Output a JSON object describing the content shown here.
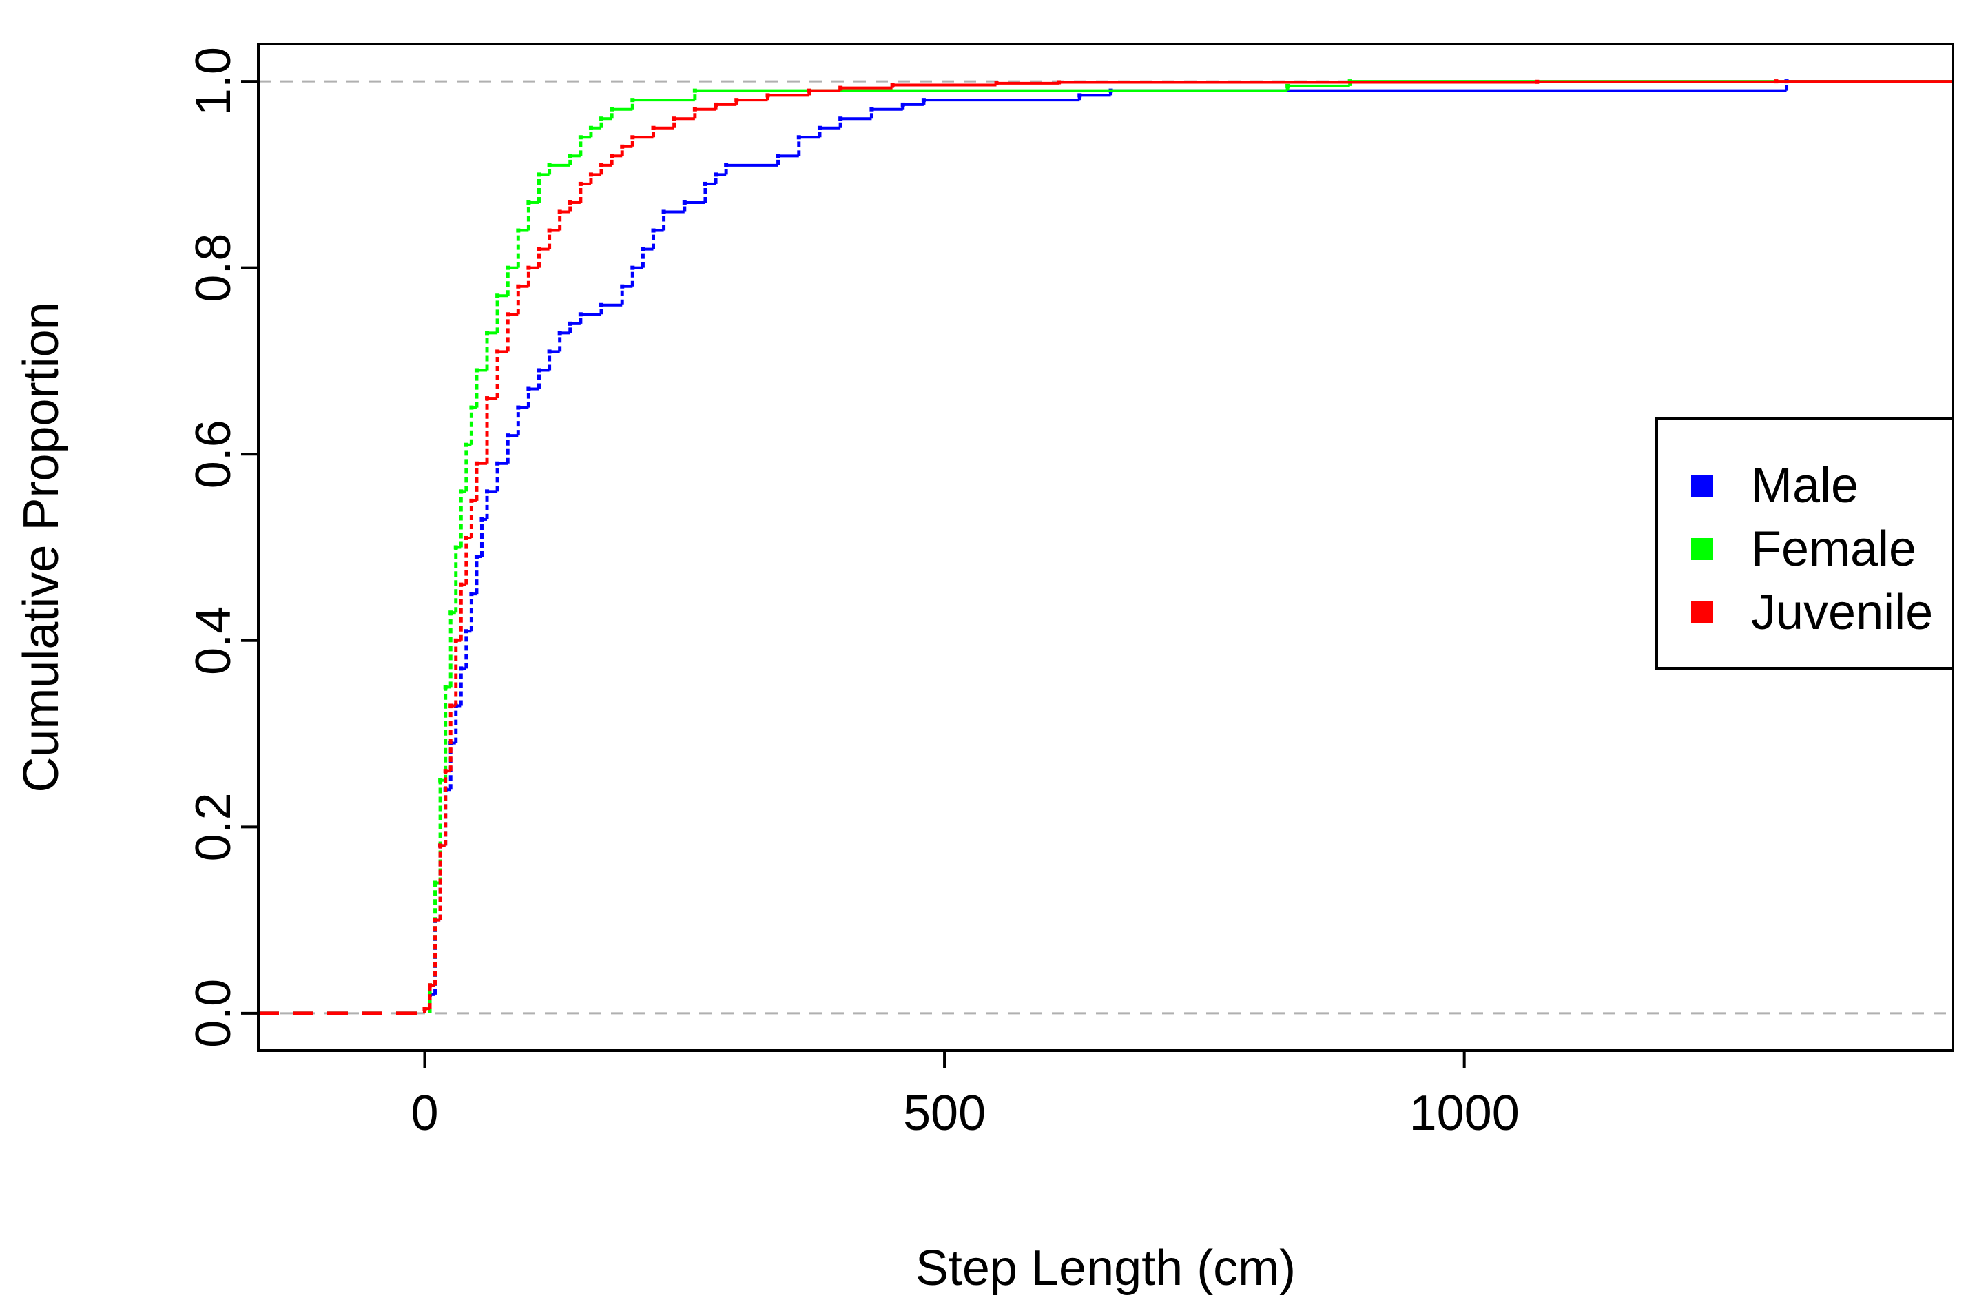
{
  "chart_data": {
    "type": "line",
    "title": "",
    "xlabel": "Step Length (cm)",
    "ylabel": "Cumulative Proportion",
    "xlim": [
      -160,
      1470
    ],
    "ylim": [
      -0.04,
      1.04
    ],
    "xticks": [
      0,
      500,
      1000
    ],
    "xtick_labels": [
      "0",
      "500",
      "1000"
    ],
    "yticks": [
      0.0,
      0.2,
      0.4,
      0.6,
      0.8,
      1.0
    ],
    "ytick_labels": [
      "0.0",
      "0.2",
      "0.4",
      "0.6",
      "0.8",
      "1.0"
    ],
    "grid": false,
    "reference_lines_y": [
      0,
      1
    ],
    "legend_position": "right",
    "series": [
      {
        "name": "Male",
        "color": "#0000ff",
        "x": [
          5,
          10,
          15,
          20,
          25,
          30,
          35,
          40,
          45,
          50,
          55,
          60,
          70,
          80,
          90,
          100,
          110,
          120,
          130,
          140,
          150,
          170,
          190,
          200,
          210,
          220,
          230,
          250,
          270,
          280,
          290,
          340,
          360,
          380,
          400,
          430,
          460,
          480,
          630,
          660,
          1310
        ],
        "y": [
          0.02,
          0.1,
          0.18,
          0.24,
          0.29,
          0.33,
          0.37,
          0.41,
          0.45,
          0.49,
          0.53,
          0.56,
          0.59,
          0.62,
          0.65,
          0.67,
          0.69,
          0.71,
          0.73,
          0.74,
          0.75,
          0.76,
          0.78,
          0.8,
          0.82,
          0.84,
          0.86,
          0.87,
          0.89,
          0.9,
          0.91,
          0.92,
          0.94,
          0.95,
          0.96,
          0.97,
          0.975,
          0.98,
          0.985,
          0.99,
          1.0
        ]
      },
      {
        "name": "Female",
        "color": "#00ff00",
        "x": [
          5,
          10,
          15,
          20,
          25,
          30,
          35,
          40,
          45,
          50,
          60,
          70,
          80,
          90,
          100,
          110,
          120,
          140,
          150,
          160,
          170,
          180,
          200,
          260,
          830,
          890
        ],
        "y": [
          0.03,
          0.14,
          0.25,
          0.35,
          0.43,
          0.5,
          0.56,
          0.61,
          0.65,
          0.69,
          0.73,
          0.77,
          0.8,
          0.84,
          0.87,
          0.9,
          0.91,
          0.92,
          0.94,
          0.95,
          0.96,
          0.97,
          0.98,
          0.99,
          0.995,
          1.0
        ]
      },
      {
        "name": "Juvenile",
        "color": "#ff0000",
        "x": [
          0,
          5,
          10,
          15,
          20,
          25,
          30,
          35,
          40,
          45,
          50,
          60,
          70,
          80,
          90,
          100,
          110,
          120,
          130,
          140,
          150,
          160,
          170,
          180,
          190,
          200,
          220,
          240,
          260,
          280,
          300,
          330,
          370,
          400,
          450,
          550,
          610,
          1070,
          1300
        ],
        "y": [
          0.005,
          0.03,
          0.1,
          0.18,
          0.26,
          0.33,
          0.4,
          0.46,
          0.51,
          0.55,
          0.59,
          0.66,
          0.71,
          0.75,
          0.78,
          0.8,
          0.82,
          0.84,
          0.86,
          0.87,
          0.89,
          0.9,
          0.91,
          0.92,
          0.93,
          0.94,
          0.95,
          0.96,
          0.97,
          0.975,
          0.98,
          0.985,
          0.99,
          0.993,
          0.996,
          0.998,
          0.999,
          0.9995,
          1.0
        ]
      }
    ]
  }
}
